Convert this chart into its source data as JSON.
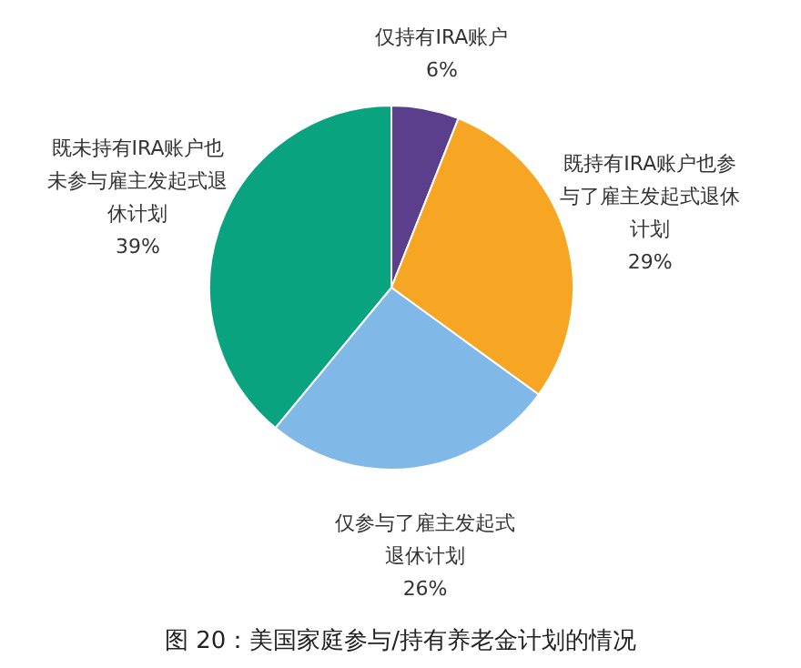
{
  "chart_data": {
    "type": "pie",
    "title": "图 20：美国家庭参与/持有养老金计划的情况",
    "categories": [
      "仅持有IRA账户",
      "既持有IRA账户也参与了雇主发起式退休计划",
      "仅参与了雇主发起式退休计划",
      "既未持有IRA账户也未参与雇主发起式退休计划"
    ],
    "values": [
      6,
      29,
      26,
      39
    ],
    "value_labels": [
      "6%",
      "29%",
      "26%",
      "39%"
    ],
    "colors": [
      "#5b3f8c",
      "#f6a623",
      "#80b9e8",
      "#0aa37f"
    ],
    "legend": false
  }
}
